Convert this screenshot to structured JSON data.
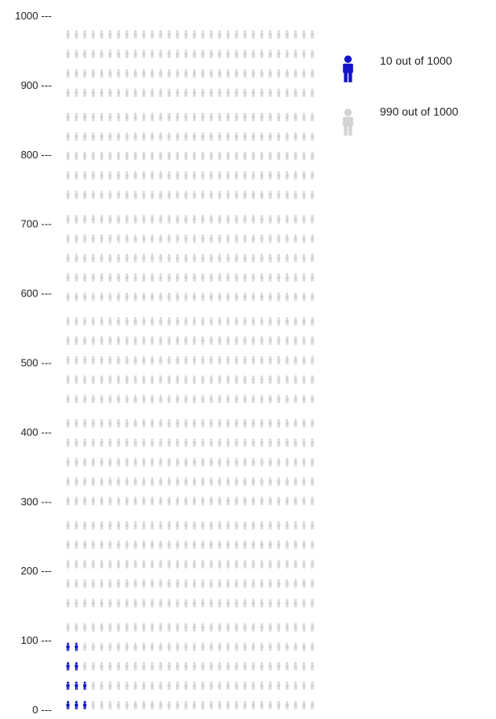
{
  "chart_data": {
    "type": "pictograph",
    "total": 1000,
    "units_per_icon": 1,
    "icons_per_row": 30,
    "ylim": [
      0,
      1000
    ],
    "y_ticks": [
      {
        "value": 0,
        "label": "0 ---"
      },
      {
        "value": 100,
        "label": "100 ---"
      },
      {
        "value": 200,
        "label": "200 ---"
      },
      {
        "value": 300,
        "label": "300 ---"
      },
      {
        "value": 400,
        "label": "400 ---"
      },
      {
        "value": 500,
        "label": "500 ---"
      },
      {
        "value": 600,
        "label": "600 ---"
      },
      {
        "value": 700,
        "label": "700 ---"
      },
      {
        "value": 800,
        "label": "800 ---"
      },
      {
        "value": 900,
        "label": "900 ---"
      },
      {
        "value": 1000,
        "label": "1000 ---"
      }
    ],
    "groups": [
      {
        "count": 10,
        "color": "#1414c8",
        "legend_label": "10 out of 1000"
      },
      {
        "count": 990,
        "color": "#d3d3d3",
        "legend_label": "990 out of 1000"
      }
    ],
    "highlighted_layout": {
      "rows": 4,
      "counts_per_row_from_bottom": [
        3,
        3,
        2,
        2
      ]
    },
    "icon": "person-icon",
    "legend_position": "top-right"
  }
}
